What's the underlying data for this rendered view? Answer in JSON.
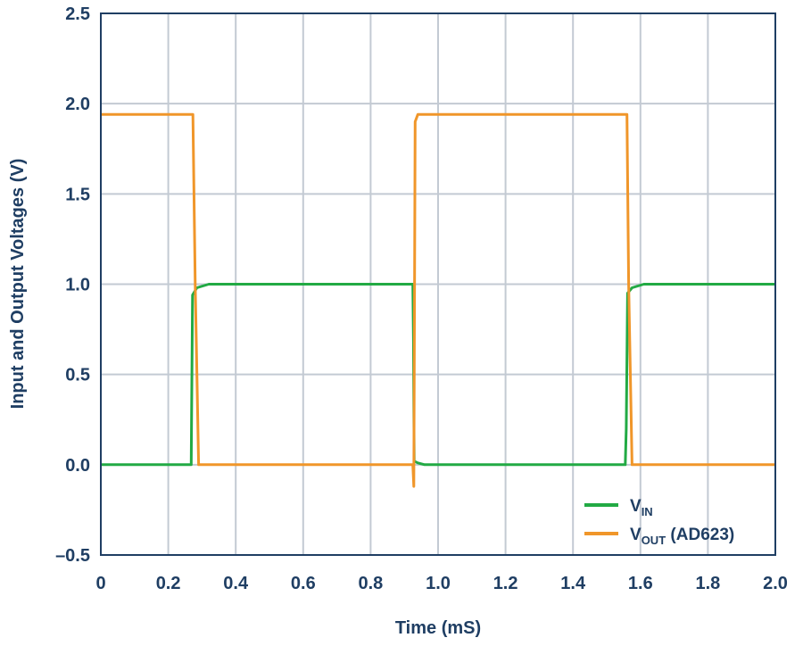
{
  "chart_data": {
    "type": "line",
    "title": "",
    "xlabel": "Time (mS)",
    "ylabel": "Input and Output Voltages (V)",
    "xlim": [
      0,
      2.0
    ],
    "ylim": [
      -0.5,
      2.5
    ],
    "x_ticks": [
      "0",
      "0.2",
      "0.4",
      "0.6",
      "0.8",
      "1.0",
      "1.2",
      "1.4",
      "1.6",
      "1.8",
      "2.0"
    ],
    "y_ticks": [
      "2.5",
      "2.0",
      "1.5",
      "1.0",
      "0.5",
      "0.0",
      "–0.5"
    ],
    "grid": true,
    "legend_position": "bottom-right",
    "series": [
      {
        "name": "VIN",
        "legend_main": "V",
        "legend_sub": "IN",
        "legend_suffix": "",
        "color": "#22aa44",
        "points": [
          [
            0,
            0.0
          ],
          [
            0.268,
            0.0
          ],
          [
            0.272,
            0.94
          ],
          [
            0.285,
            0.98
          ],
          [
            0.32,
            1.0
          ],
          [
            0.925,
            1.0
          ],
          [
            0.927,
            0.7
          ],
          [
            0.929,
            0.02
          ],
          [
            0.94,
            0.01
          ],
          [
            0.96,
            0.0
          ],
          [
            1.555,
            0.0
          ],
          [
            1.558,
            0.2
          ],
          [
            1.562,
            0.95
          ],
          [
            1.575,
            0.98
          ],
          [
            1.61,
            1.0
          ],
          [
            2.0,
            1.0
          ]
        ]
      },
      {
        "name": "VOUT (AD623)",
        "legend_main": "V",
        "legend_sub": "OUT",
        "legend_suffix": " (AD623)",
        "color": "#f0962a",
        "points": [
          [
            0,
            1.94
          ],
          [
            0.273,
            1.94
          ],
          [
            0.28,
            1.0
          ],
          [
            0.29,
            0.0
          ],
          [
            0.925,
            0.0
          ],
          [
            0.928,
            -0.12
          ],
          [
            0.932,
            1.9
          ],
          [
            0.94,
            1.94
          ],
          [
            1.56,
            1.94
          ],
          [
            1.565,
            1.0
          ],
          [
            1.575,
            0.0
          ],
          [
            2.0,
            0.0
          ]
        ]
      }
    ]
  }
}
